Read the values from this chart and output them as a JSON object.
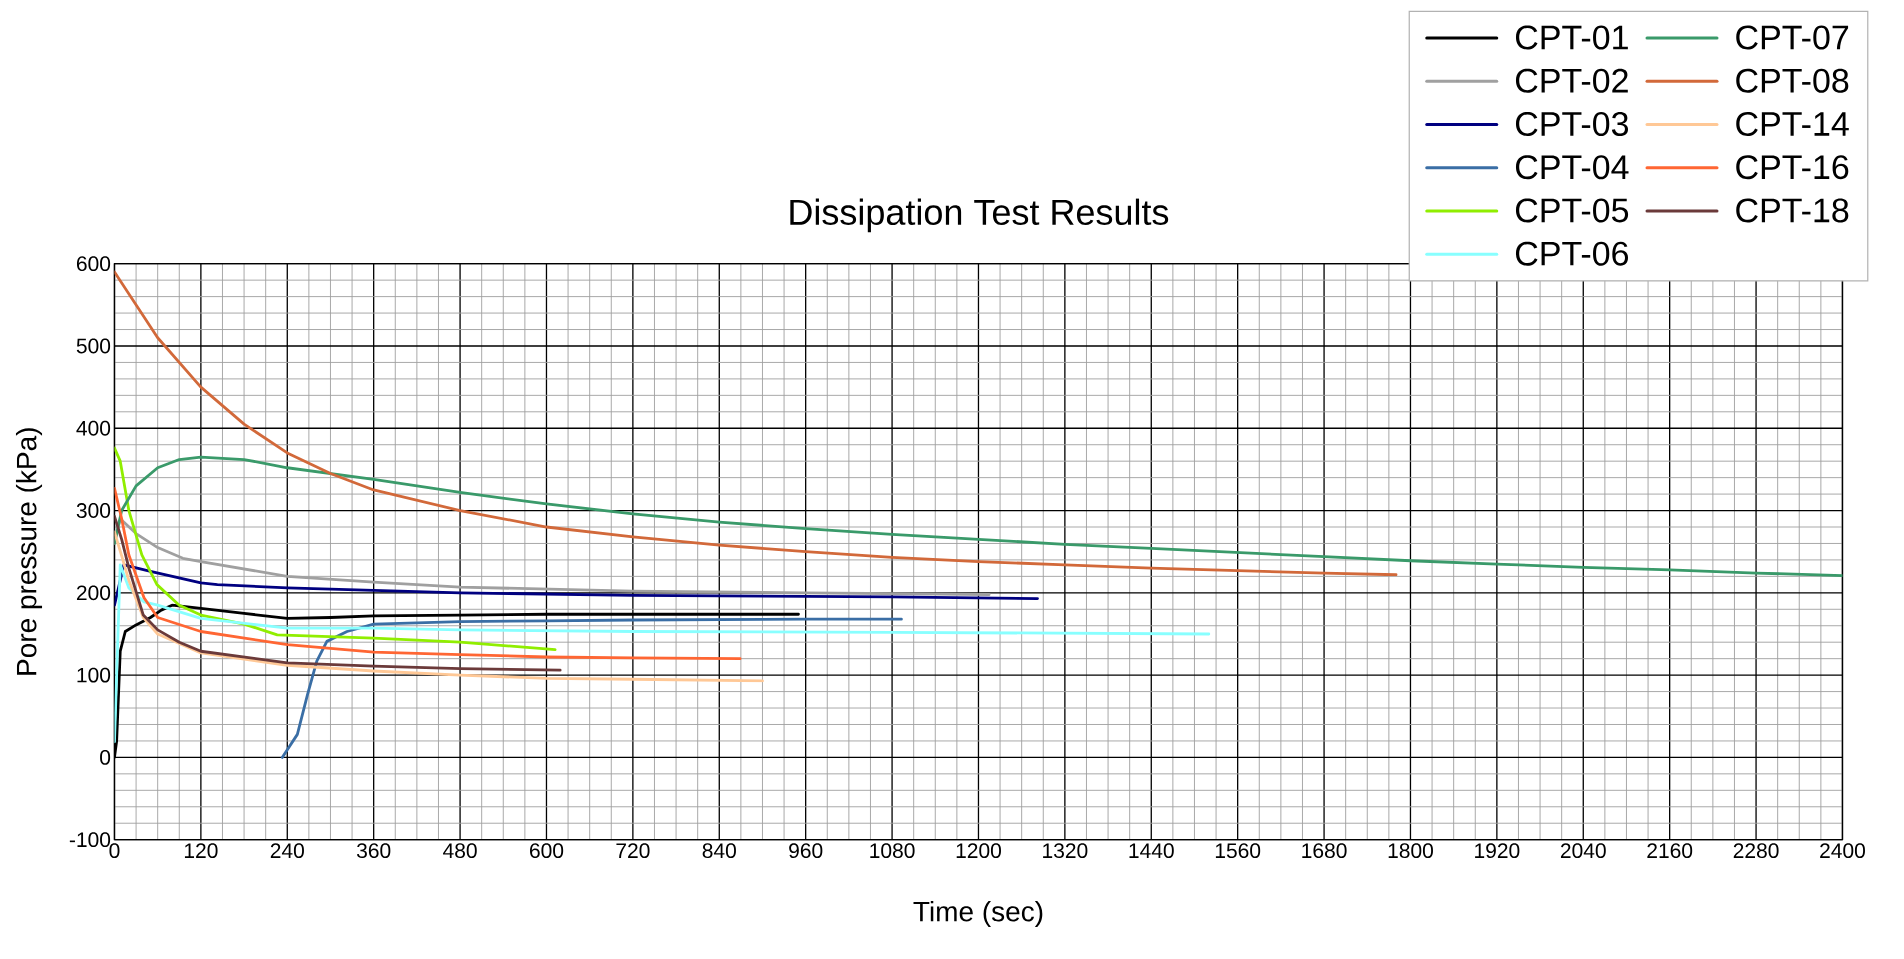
{
  "chart_data": {
    "type": "line",
    "title": "Dissipation Test Results",
    "xlabel": "Time (sec)",
    "ylabel": "Pore pressure (kPa)",
    "xlim": [
      0,
      2400
    ],
    "ylim": [
      -100,
      600
    ],
    "xticks": [
      0,
      120,
      240,
      360,
      480,
      600,
      720,
      840,
      960,
      1080,
      1200,
      1320,
      1440,
      1560,
      1680,
      1800,
      1920,
      2040,
      2160,
      2280,
      2400
    ],
    "yticks": [
      -100,
      0,
      100,
      200,
      300,
      400,
      500,
      600
    ],
    "grid": true,
    "legend": "top right",
    "series": [
      {
        "name": "CPT-01",
        "color": "#000000",
        "x": [
          0,
          3,
          8,
          15,
          30,
          50,
          65,
          80,
          120,
          180,
          240,
          300,
          360,
          480,
          600,
          720,
          950
        ],
        "values": [
          0,
          20,
          129,
          153,
          161,
          170,
          179,
          185,
          181,
          175,
          169,
          170,
          172,
          173,
          174,
          174,
          174
        ]
      },
      {
        "name": "CPT-02",
        "color": "#a0a0a0",
        "x": [
          0,
          8,
          30,
          60,
          95,
          120,
          240,
          360,
          480,
          720,
          960,
          1215
        ],
        "values": [
          260,
          290,
          272,
          255,
          242,
          238,
          220,
          213,
          207,
          202,
          200,
          198
        ]
      },
      {
        "name": "CPT-03",
        "color": "#000080",
        "x": [
          0,
          13,
          50,
          120,
          143,
          240,
          480,
          720,
          1080,
          1282
        ],
        "values": [
          185,
          234,
          226,
          212,
          210,
          206,
          200,
          197,
          195,
          193
        ]
      },
      {
        "name": "CPT-04",
        "color": "#3a6ea5",
        "x": [
          233,
          254,
          268,
          281,
          295,
          323,
          360,
          480,
          600,
          720,
          960,
          1093
        ],
        "values": [
          0,
          28,
          76,
          117,
          141,
          153,
          162,
          165,
          166,
          167,
          168,
          168
        ]
      },
      {
        "name": "CPT-05",
        "color": "#90ee00",
        "x": [
          0,
          8,
          20,
          38,
          59,
          90,
          120,
          180,
          226,
          360,
          480,
          612
        ],
        "values": [
          376,
          360,
          300,
          246,
          210,
          185,
          173,
          162,
          149,
          145,
          140,
          131
        ]
      },
      {
        "name": "CPT-06",
        "color": "#88ffff",
        "x": [
          0,
          8,
          20,
          41,
          60,
          120,
          240,
          360,
          480,
          720,
          1080,
          1520
        ],
        "values": [
          19,
          234,
          206,
          189,
          185,
          169,
          157,
          157,
          155,
          153,
          152,
          150
        ]
      },
      {
        "name": "CPT-07",
        "color": "#3a9a6a",
        "x": [
          0,
          10,
          30,
          60,
          90,
          120,
          180,
          240,
          360,
          480,
          600,
          720,
          840,
          960,
          1080,
          1200,
          1320,
          1440,
          1560,
          1680,
          1800,
          1920,
          2040,
          2160,
          2280,
          2400
        ],
        "values": [
          260,
          300,
          330,
          352,
          362,
          365,
          362,
          352,
          338,
          322,
          308,
          296,
          286,
          278,
          271,
          265,
          259,
          254,
          249,
          244,
          239,
          235,
          231,
          228,
          224,
          221
        ]
      },
      {
        "name": "CPT-08",
        "color": "#d2693a",
        "x": [
          0,
          60,
          120,
          180,
          240,
          300,
          360,
          480,
          600,
          720,
          840,
          960,
          1080,
          1200,
          1320,
          1440,
          1560,
          1680,
          1780
        ],
        "values": [
          590,
          510,
          450,
          405,
          370,
          345,
          325,
          300,
          280,
          268,
          258,
          250,
          243,
          238,
          234,
          230,
          227,
          224,
          222
        ]
      },
      {
        "name": "CPT-14",
        "color": "#ffc896",
        "x": [
          0,
          10,
          20,
          40,
          60,
          120,
          240,
          360,
          480,
          600,
          720,
          900
        ],
        "values": [
          274,
          245,
          215,
          170,
          150,
          127,
          112,
          105,
          100,
          96,
          95,
          93
        ]
      },
      {
        "name": "CPT-16",
        "color": "#ff6633",
        "x": [
          0,
          10,
          20,
          41,
          60,
          120,
          240,
          360,
          480,
          600,
          720,
          869
        ],
        "values": [
          327,
          290,
          246,
          194,
          170,
          153,
          137,
          128,
          125,
          122,
          121,
          120
        ]
      },
      {
        "name": "CPT-18",
        "color": "#6b3a3a",
        "x": [
          0,
          10,
          20,
          40,
          60,
          90,
          120,
          240,
          360,
          480,
          619
        ],
        "values": [
          293,
          265,
          230,
          173,
          155,
          140,
          129,
          115,
          111,
          108,
          106
        ]
      }
    ]
  }
}
